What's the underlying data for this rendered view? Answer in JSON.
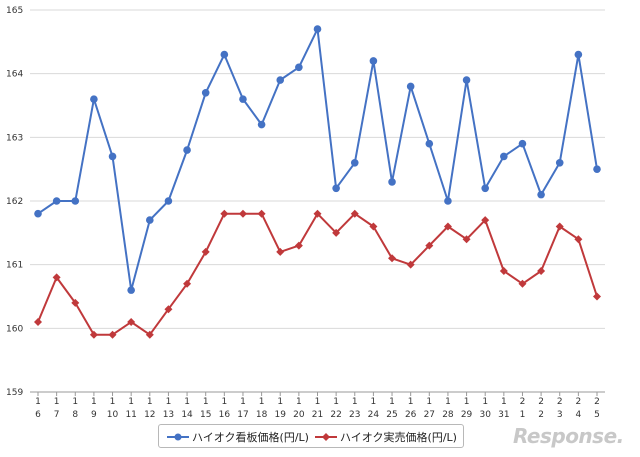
{
  "chart_data": {
    "type": "line",
    "categories": [
      [
        "1",
        "6"
      ],
      [
        "1",
        "7"
      ],
      [
        "1",
        "8"
      ],
      [
        "1",
        "9"
      ],
      [
        "1",
        "10"
      ],
      [
        "1",
        "11"
      ],
      [
        "1",
        "12"
      ],
      [
        "1",
        "13"
      ],
      [
        "1",
        "14"
      ],
      [
        "1",
        "15"
      ],
      [
        "1",
        "16"
      ],
      [
        "1",
        "17"
      ],
      [
        "1",
        "18"
      ],
      [
        "1",
        "19"
      ],
      [
        "1",
        "20"
      ],
      [
        "1",
        "21"
      ],
      [
        "1",
        "22"
      ],
      [
        "1",
        "23"
      ],
      [
        "1",
        "24"
      ],
      [
        "1",
        "25"
      ],
      [
        "1",
        "26"
      ],
      [
        "1",
        "27"
      ],
      [
        "1",
        "28"
      ],
      [
        "1",
        "29"
      ],
      [
        "1",
        "30"
      ],
      [
        "1",
        "31"
      ],
      [
        "2",
        "1"
      ],
      [
        "2",
        "2"
      ],
      [
        "2",
        "3"
      ],
      [
        "2",
        "4"
      ],
      [
        "2",
        "5"
      ]
    ],
    "ylim": [
      159,
      165
    ],
    "yticks": [
      159,
      160,
      161,
      162,
      163,
      164,
      165
    ],
    "grid": true,
    "legend_position": "bottom",
    "series": [
      {
        "name": "ハイオク看板価格(円/L)",
        "color": "#4472c4",
        "marker": "circle",
        "values": [
          161.8,
          162.0,
          162.0,
          163.6,
          162.7,
          160.6,
          161.7,
          162.0,
          162.8,
          163.7,
          164.3,
          163.6,
          163.2,
          163.9,
          164.1,
          164.7,
          162.2,
          162.6,
          164.2,
          162.3,
          163.8,
          162.9,
          162.0,
          163.9,
          162.2,
          162.7,
          162.9,
          162.1,
          162.6,
          164.3,
          162.5
        ]
      },
      {
        "name": "ハイオク実売価格(円/L)",
        "color": "#c0393b",
        "marker": "diamond",
        "values": [
          160.1,
          160.8,
          160.4,
          159.9,
          159.9,
          160.1,
          159.9,
          160.3,
          160.7,
          161.2,
          161.8,
          161.8,
          161.8,
          161.2,
          161.3,
          161.8,
          161.5,
          161.8,
          161.6,
          161.1,
          161.0,
          161.3,
          161.6,
          161.4,
          161.7,
          160.9,
          160.7,
          160.9,
          161.6,
          161.4,
          160.5
        ]
      }
    ]
  },
  "watermark": "Response."
}
